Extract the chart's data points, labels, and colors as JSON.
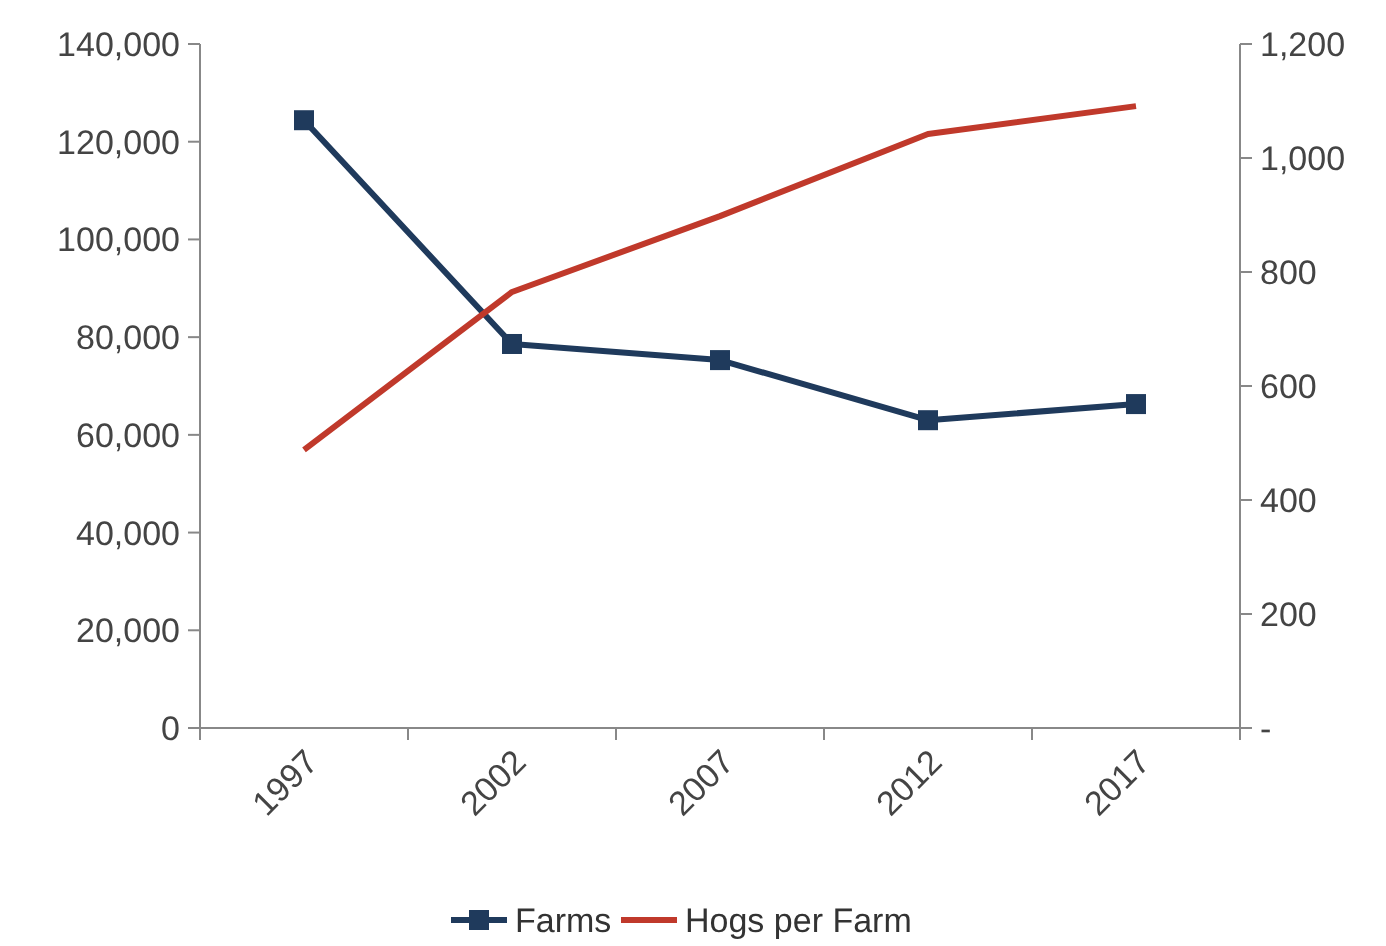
{
  "chart_data": {
    "type": "line",
    "categories": [
      "1997",
      "2002",
      "2007",
      "2012",
      "2017"
    ],
    "series": [
      {
        "name": "Farms",
        "color": "#1f3a5c",
        "marker": "square",
        "values": [
          124400,
          78600,
          75300,
          63000,
          66300
        ]
      },
      {
        "name": "Hogs per Farm",
        "color": "#c0392b",
        "axis": "y2",
        "marker": "none",
        "values": [
          488,
          765,
          898,
          1042,
          1091
        ]
      }
    ],
    "ylim": [
      0,
      140000
    ],
    "yticks": [
      {
        "value": 0,
        "label": "0"
      },
      {
        "value": 20000,
        "label": "20,000"
      },
      {
        "value": 40000,
        "label": "40,000"
      },
      {
        "value": 60000,
        "label": "60,000"
      },
      {
        "value": 80000,
        "label": "80,000"
      },
      {
        "value": 100000,
        "label": "100,000"
      },
      {
        "value": 120000,
        "label": "120,000"
      },
      {
        "value": 140000,
        "label": "140,000"
      }
    ],
    "y2lim": [
      0,
      1200
    ],
    "y2ticks": [
      {
        "value": 0,
        "label": "-"
      },
      {
        "value": 200,
        "label": "200"
      },
      {
        "value": 400,
        "label": "400"
      },
      {
        "value": 600,
        "label": "600"
      },
      {
        "value": 800,
        "label": "800"
      },
      {
        "value": 1000,
        "label": "1,000"
      },
      {
        "value": 1200,
        "label": "1,200"
      }
    ],
    "grid": false,
    "legend": "bottom"
  }
}
